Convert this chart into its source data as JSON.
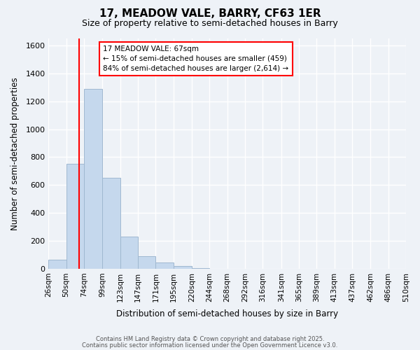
{
  "title": "17, MEADOW VALE, BARRY, CF63 1ER",
  "subtitle": "Size of property relative to semi-detached houses in Barry",
  "xlabel": "Distribution of semi-detached houses by size in Barry",
  "ylabel": "Number of semi-detached properties",
  "bar_color": "#c5d8ed",
  "bar_edgecolor": "#a0b8d0",
  "background_color": "#eef2f7",
  "grid_color": "#ffffff",
  "vline_x": 67,
  "vline_color": "red",
  "annotation_title": "17 MEADOW VALE: 67sqm",
  "annotation_line1": "← 15% of semi-detached houses are smaller (459)",
  "annotation_line2": "84% of semi-detached houses are larger (2,614) →",
  "bin_edges": [
    26,
    50,
    74,
    99,
    123,
    147,
    171,
    195,
    220,
    244,
    268,
    292,
    316,
    341,
    365,
    389,
    413,
    437,
    462,
    486,
    510
  ],
  "bin_counts": [
    65,
    750,
    1290,
    650,
    230,
    90,
    45,
    20,
    5,
    2,
    1,
    0,
    0,
    0,
    0,
    0,
    0,
    0,
    0,
    0
  ],
  "tick_labels": [
    "26sqm",
    "50sqm",
    "74sqm",
    "99sqm",
    "123sqm",
    "147sqm",
    "171sqm",
    "195sqm",
    "220sqm",
    "244sqm",
    "268sqm",
    "292sqm",
    "316sqm",
    "341sqm",
    "365sqm",
    "389sqm",
    "413sqm",
    "437sqm",
    "462sqm",
    "486sqm",
    "510sqm"
  ],
  "ylim": [
    0,
    1650
  ],
  "yticks": [
    0,
    200,
    400,
    600,
    800,
    1000,
    1200,
    1400,
    1600
  ],
  "footer_line1": "Contains HM Land Registry data © Crown copyright and database right 2025.",
  "footer_line2": "Contains public sector information licensed under the Open Government Licence v3.0."
}
